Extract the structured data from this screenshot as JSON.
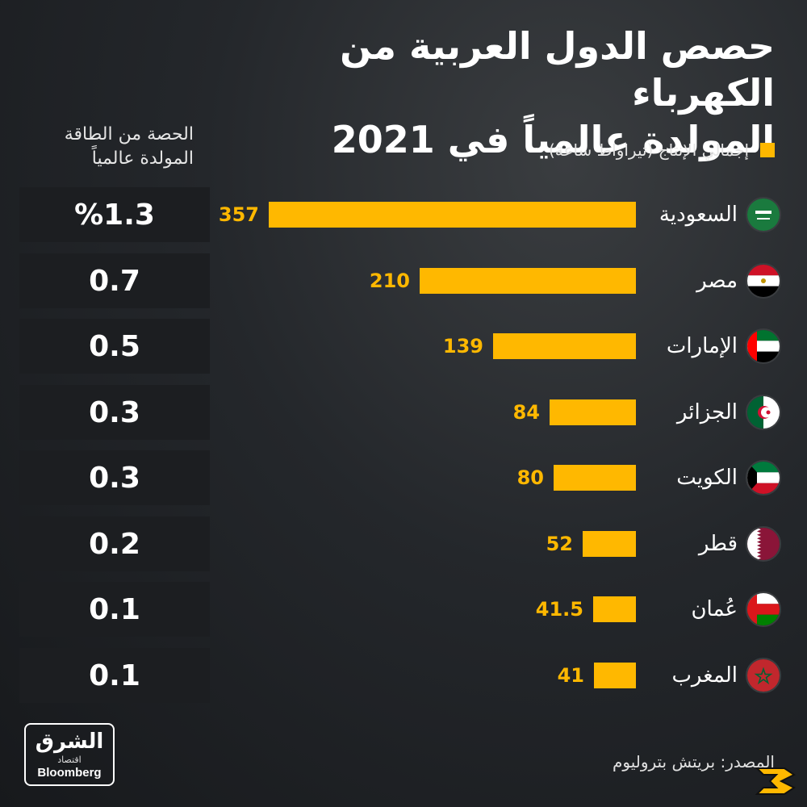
{
  "title": {
    "line1": "حصص الدول العربية من الكهرباء",
    "line2": "المولدة عالمياً في 2021"
  },
  "share_header": {
    "line1": "الحصة من الطاقة",
    "line2": "المولدة عالمياً"
  },
  "legend": {
    "label": "إجمالي الإنتاج (تيراواط ساعة)",
    "color": "#ffb800"
  },
  "source": "المصدر: بريتش بتروليوم",
  "logo": {
    "ar": "الشرق",
    "sub": "اقتصاد",
    "en": "Bloomberg"
  },
  "colors": {
    "bar": "#ffb800",
    "background": "#24272b",
    "share_box": "#1c1e21"
  },
  "chart_data": {
    "type": "bar",
    "orientation": "horizontal",
    "categories": [
      "السعودية",
      "مصر",
      "الإمارات",
      "الجزائر",
      "الكويت",
      "قطر",
      "عُمان",
      "المغرب"
    ],
    "values": [
      357,
      210,
      139,
      84,
      80,
      52,
      41.5,
      41
    ],
    "value_labels": [
      "357",
      "210",
      "139",
      "84",
      "80",
      "52",
      "41.5",
      "41"
    ],
    "share_labels": [
      "%1.3",
      "0.7",
      "0.5",
      "0.3",
      "0.3",
      "0.2",
      "0.1",
      "0.1"
    ],
    "flags": [
      "saudi-flag-icon",
      "egypt-flag-icon",
      "uae-flag-icon",
      "algeria-flag-icon",
      "kuwait-flag-icon",
      "qatar-flag-icon",
      "oman-flag-icon",
      "morocco-flag-icon"
    ],
    "xlim": [
      0,
      357
    ]
  }
}
